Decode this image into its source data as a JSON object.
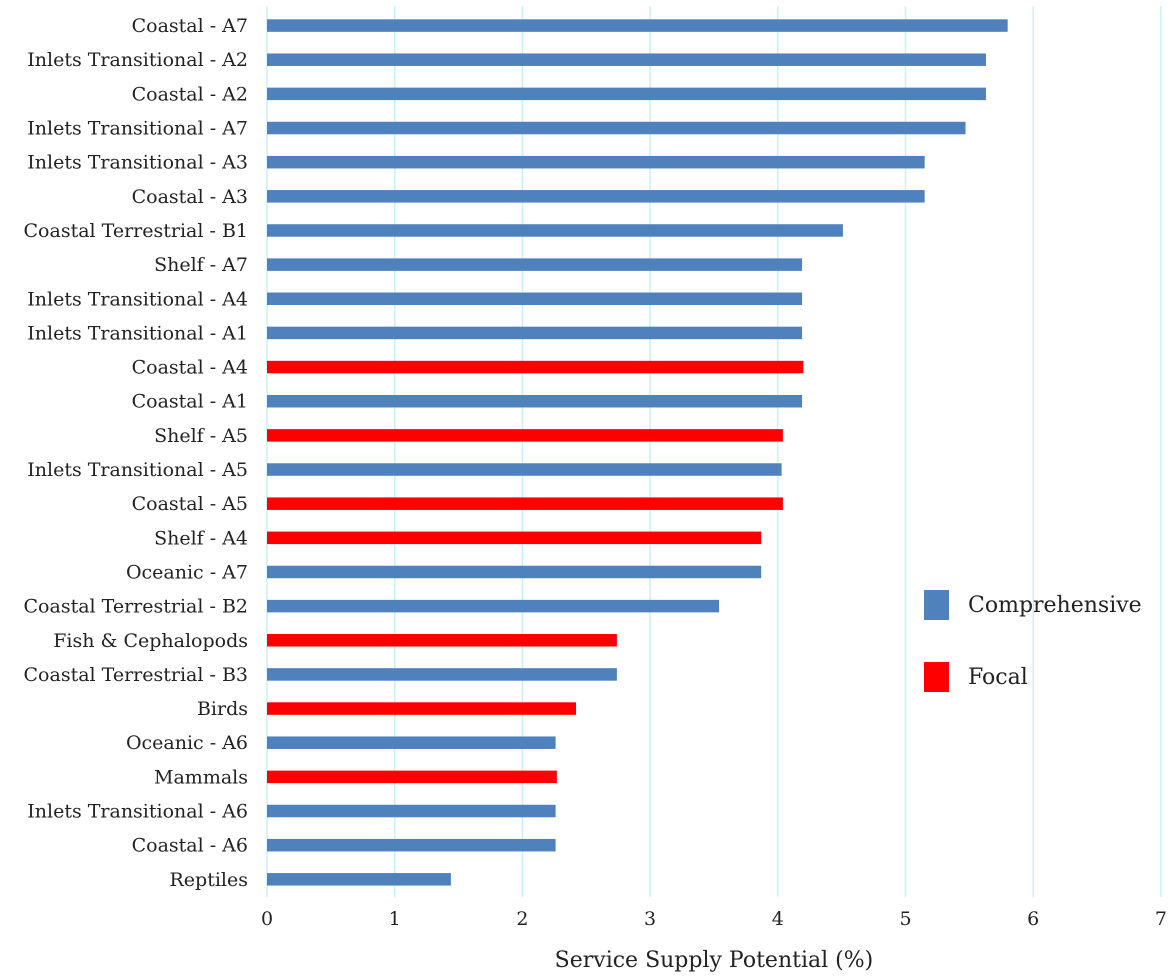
{
  "chart_data": {
    "type": "bar",
    "orientation": "horizontal",
    "xlabel": "Service Supply Potential (%)",
    "xlim": [
      0,
      7
    ],
    "xticks": [
      0,
      1,
      2,
      3,
      4,
      5,
      6,
      7
    ],
    "grid": "vertical",
    "grid_color": "#c9f1f7",
    "legend_position": "right",
    "legend": [
      {
        "label": "Comprehensive",
        "color": "#4f81bd"
      },
      {
        "label": "Focal",
        "color": "#ff0000"
      }
    ],
    "bars": [
      {
        "category": "Coastal - A7",
        "value": 5.8,
        "group": "Comprehensive"
      },
      {
        "category": "Inlets Transitional - A2",
        "value": 5.63,
        "group": "Comprehensive"
      },
      {
        "category": "Coastal - A2",
        "value": 5.63,
        "group": "Comprehensive"
      },
      {
        "category": "Inlets Transitional - A7",
        "value": 5.47,
        "group": "Comprehensive"
      },
      {
        "category": "Inlets Transitional - A3",
        "value": 5.15,
        "group": "Comprehensive"
      },
      {
        "category": "Coastal - A3",
        "value": 5.15,
        "group": "Comprehensive"
      },
      {
        "category": "Coastal Terrestrial - B1",
        "value": 4.51,
        "group": "Comprehensive"
      },
      {
        "category": "Shelf - A7",
        "value": 4.19,
        "group": "Comprehensive"
      },
      {
        "category": "Inlets Transitional - A4",
        "value": 4.19,
        "group": "Comprehensive"
      },
      {
        "category": "Inlets Transitional - A1",
        "value": 4.19,
        "group": "Comprehensive"
      },
      {
        "category": "Coastal - A4",
        "value": 4.2,
        "group": "Focal"
      },
      {
        "category": "Coastal - A1",
        "value": 4.19,
        "group": "Comprehensive"
      },
      {
        "category": "Shelf - A5",
        "value": 4.04,
        "group": "Focal"
      },
      {
        "category": "Inlets Transitional - A5",
        "value": 4.03,
        "group": "Comprehensive"
      },
      {
        "category": "Coastal - A5",
        "value": 4.04,
        "group": "Focal"
      },
      {
        "category": "Shelf - A4",
        "value": 3.87,
        "group": "Focal"
      },
      {
        "category": "Oceanic - A7",
        "value": 3.87,
        "group": "Comprehensive"
      },
      {
        "category": "Coastal Terrestrial - B2",
        "value": 3.54,
        "group": "Comprehensive"
      },
      {
        "category": "Fish & Cephalopods",
        "value": 2.74,
        "group": "Focal"
      },
      {
        "category": "Coastal Terrestrial - B3",
        "value": 2.74,
        "group": "Comprehensive"
      },
      {
        "category": "Birds",
        "value": 2.42,
        "group": "Focal"
      },
      {
        "category": "Oceanic - A6",
        "value": 2.26,
        "group": "Comprehensive"
      },
      {
        "category": "Mammals",
        "value": 2.27,
        "group": "Focal"
      },
      {
        "category": "Inlets Transitional - A6",
        "value": 2.26,
        "group": "Comprehensive"
      },
      {
        "category": "Coastal - A6",
        "value": 2.26,
        "group": "Comprehensive"
      },
      {
        "category": "Reptiles",
        "value": 1.44,
        "group": "Comprehensive"
      }
    ]
  }
}
